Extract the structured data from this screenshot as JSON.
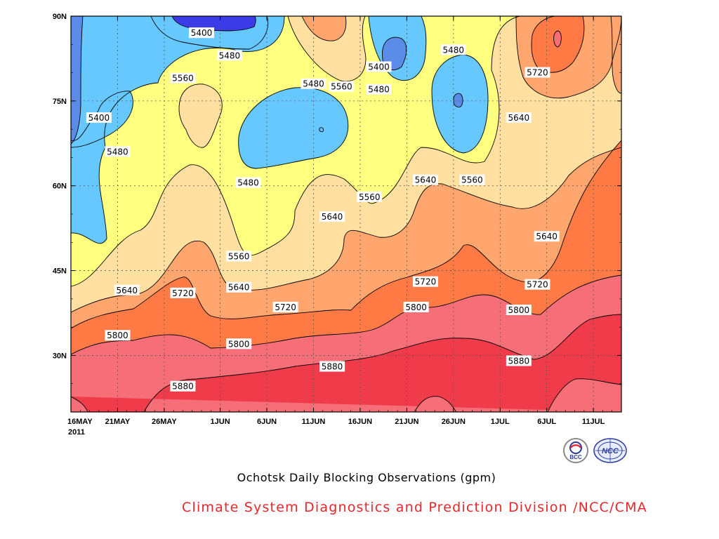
{
  "chart_data": {
    "type": "heatmap",
    "title": "Ochotsk Daily Blocking Observations (gpm)",
    "x_ticks": [
      "16MAY",
      "21MAY",
      "26MAY",
      "1JUN",
      "6JUN",
      "11JUN",
      "16JUN",
      "21JUN",
      "26JUN",
      "1JUL",
      "6JUL",
      "11JUL"
    ],
    "x_year_label": "2011",
    "y_ticks": [
      "30N",
      "45N",
      "60N",
      "75N",
      "90N"
    ],
    "x_range": [
      "2011-05-16",
      "2011-07-14"
    ],
    "y_range": [
      20,
      90
    ],
    "contour_levels": [
      5400,
      5480,
      5560,
      5640,
      5720,
      5800,
      5880
    ],
    "color_scale": [
      {
        "band": "<5320",
        "color": "#3c3ce6"
      },
      {
        "band": "5320-5400",
        "color": "#5a8be6"
      },
      {
        "band": "5400-5480",
        "color": "#66c8ff"
      },
      {
        "band": "5480-5560",
        "color": "#ffff80"
      },
      {
        "band": "5560-5640",
        "color": "#ffe0a0"
      },
      {
        "band": "5640-5720",
        "color": "#ffa56e"
      },
      {
        "band": "5720-5800",
        "color": "#ff7a45"
      },
      {
        "band": "5800-5880",
        "color": "#f56e78"
      },
      {
        "band": ">5880",
        "color": "#f03c4a"
      }
    ],
    "contour_labels": [
      {
        "text": "5400",
        "date": "2011-05-30",
        "lat": 87
      },
      {
        "text": "5480",
        "date": "2011-06-02",
        "lat": 83
      },
      {
        "text": "5400",
        "date": "2011-05-19",
        "lat": 72
      },
      {
        "text": "5480",
        "date": "2011-05-21",
        "lat": 66
      },
      {
        "text": "5560",
        "date": "2011-05-28",
        "lat": 79
      },
      {
        "text": "5480",
        "date": "2011-06-11",
        "lat": 78
      },
      {
        "text": "5560",
        "date": "2011-06-14",
        "lat": 77.5
      },
      {
        "text": "5400",
        "date": "2011-06-18",
        "lat": 81
      },
      {
        "text": "5480",
        "date": "2011-06-18",
        "lat": 77
      },
      {
        "text": "5480",
        "date": "2011-06-26",
        "lat": 84
      },
      {
        "text": "5720",
        "date": "2011-07-05",
        "lat": 80
      },
      {
        "text": "5640",
        "date": "2011-07-03",
        "lat": 72
      },
      {
        "text": "5480",
        "date": "2011-06-04",
        "lat": 60.5
      },
      {
        "text": "5560",
        "date": "2011-06-17",
        "lat": 58
      },
      {
        "text": "5640",
        "date": "2011-06-23",
        "lat": 61
      },
      {
        "text": "5560",
        "date": "2011-06-28",
        "lat": 61
      },
      {
        "text": "5640",
        "date": "2011-06-13",
        "lat": 54.5
      },
      {
        "text": "5640",
        "date": "2011-07-06",
        "lat": 51
      },
      {
        "text": "5560",
        "date": "2011-06-03",
        "lat": 47.5
      },
      {
        "text": "5640",
        "date": "2011-06-03",
        "lat": 42
      },
      {
        "text": "5640",
        "date": "2011-05-22",
        "lat": 41.5
      },
      {
        "text": "5720",
        "date": "2011-05-28",
        "lat": 41
      },
      {
        "text": "5720",
        "date": "2011-06-08",
        "lat": 38.5
      },
      {
        "text": "5720",
        "date": "2011-06-23",
        "lat": 43
      },
      {
        "text": "5720",
        "date": "2011-07-05",
        "lat": 42.5
      },
      {
        "text": "5800",
        "date": "2011-05-21",
        "lat": 33.5
      },
      {
        "text": "5800",
        "date": "2011-06-03",
        "lat": 32
      },
      {
        "text": "5800",
        "date": "2011-06-22",
        "lat": 38.5
      },
      {
        "text": "5800",
        "date": "2011-07-03",
        "lat": 38
      },
      {
        "text": "5880",
        "date": "2011-05-28",
        "lat": 24.5
      },
      {
        "text": "5880",
        "date": "2011-06-13",
        "lat": 28
      },
      {
        "text": "5880",
        "date": "2011-07-03",
        "lat": 29
      }
    ]
  },
  "credit": "Climate System Diagnostics and Prediction Division /NCC/CMA",
  "logos": [
    {
      "text": "BCC",
      "icon": "bcc-logo-icon",
      "color": "#2a3a9a"
    },
    {
      "text": "NCC",
      "icon": "ncc-logo-icon",
      "color": "#2a3a9a"
    }
  ]
}
